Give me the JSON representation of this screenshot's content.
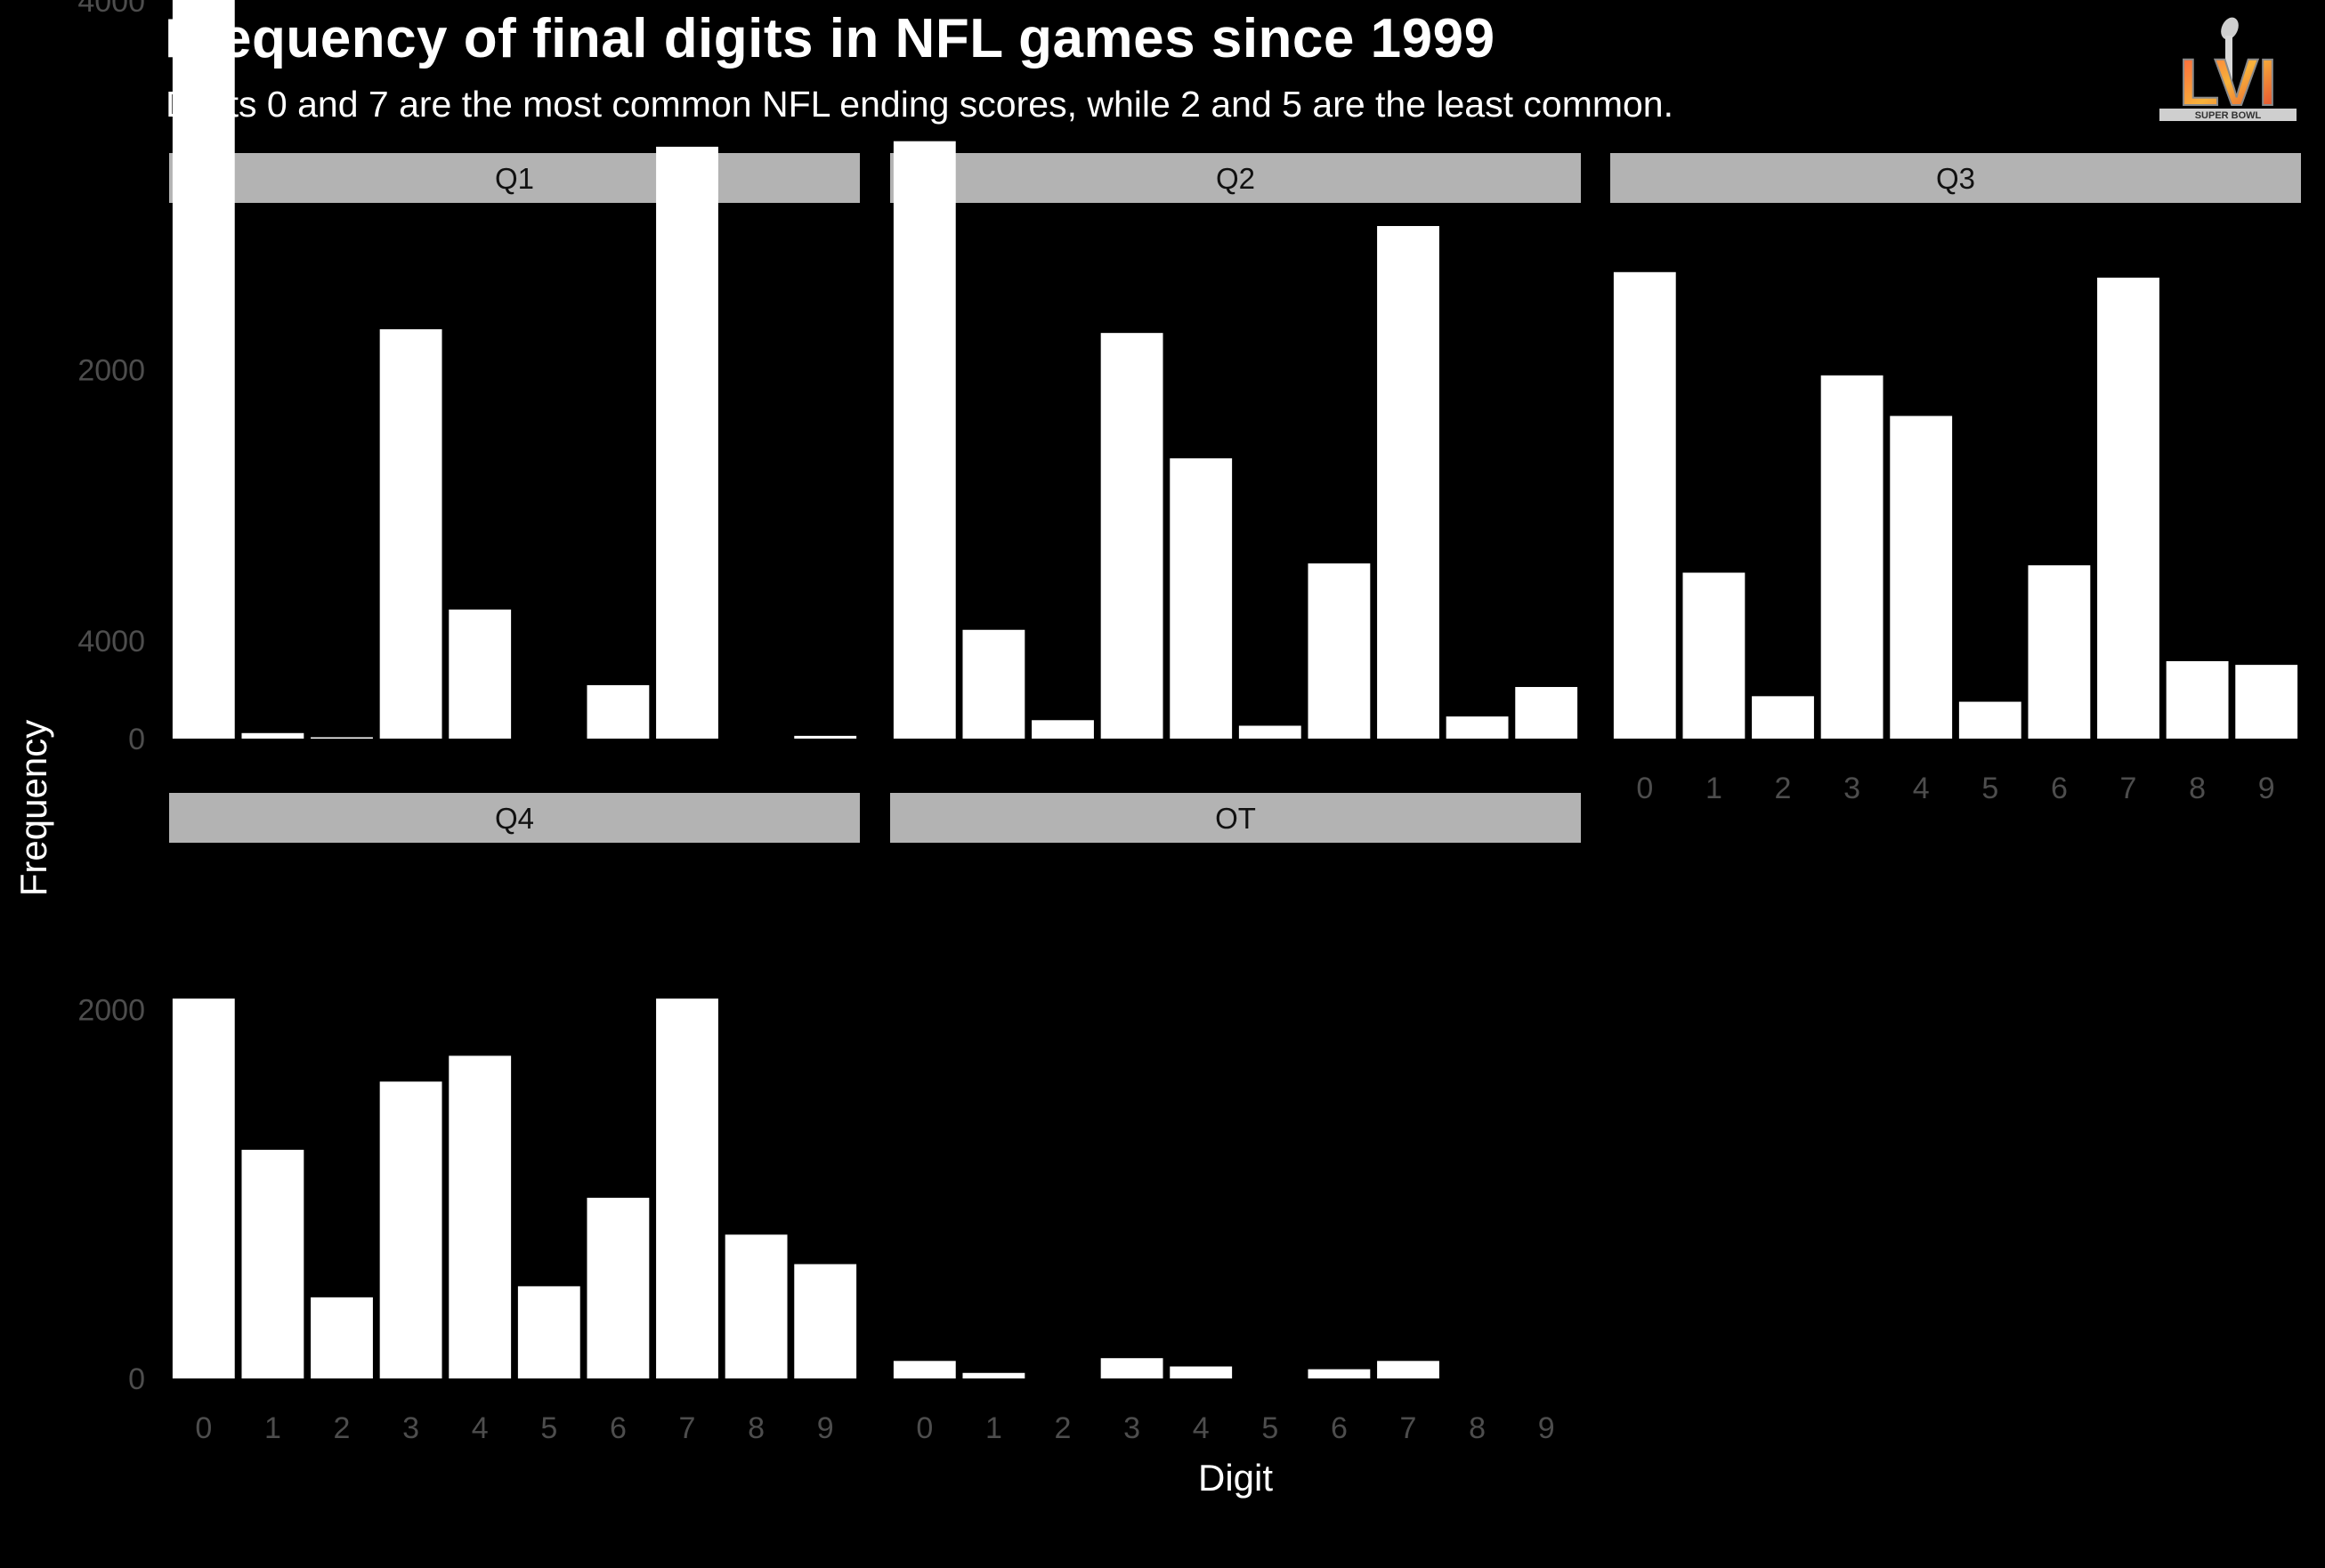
{
  "title": "Frequency of final digits in NFL games since 1999",
  "subtitle": "Digits 0 and 7 are the most common NFL ending scores, while 2 and 5 are the least common.",
  "logo": {
    "icon": "super-bowl-lvi-logo",
    "text": "LVI",
    "small_text": "SUPER BOWL"
  },
  "colors": {
    "background": "#000000",
    "bar": "#ffffff",
    "strip": "#b3b3b3",
    "tick": "#4d4d4d"
  },
  "chart_data": {
    "type": "bar",
    "layout": "facet-wrap",
    "xlabel": "Digit",
    "ylabel": "Frequency",
    "categories": [
      "0",
      "1",
      "2",
      "3",
      "4",
      "5",
      "6",
      "7",
      "8",
      "9"
    ],
    "ylim": [
      0,
      5700
    ],
    "yticks": [
      0,
      2000,
      4000
    ],
    "grid": false,
    "facets": [
      {
        "name": "Q1",
        "values": [
          5450,
          30,
          5,
          2220,
          700,
          0,
          290,
          3210,
          0,
          15
        ]
      },
      {
        "name": "Q2",
        "values": [
          3240,
          590,
          100,
          2200,
          1520,
          70,
          950,
          2780,
          120,
          280
        ]
      },
      {
        "name": "Q3",
        "values": [
          2530,
          900,
          230,
          1970,
          1750,
          200,
          940,
          2500,
          420,
          400
        ]
      },
      {
        "name": "Q4",
        "values": [
          2060,
          1240,
          440,
          1610,
          1750,
          500,
          980,
          2060,
          780,
          620
        ]
      },
      {
        "name": "OT",
        "values": [
          95,
          30,
          0,
          110,
          65,
          0,
          50,
          95,
          0,
          0
        ]
      }
    ]
  }
}
